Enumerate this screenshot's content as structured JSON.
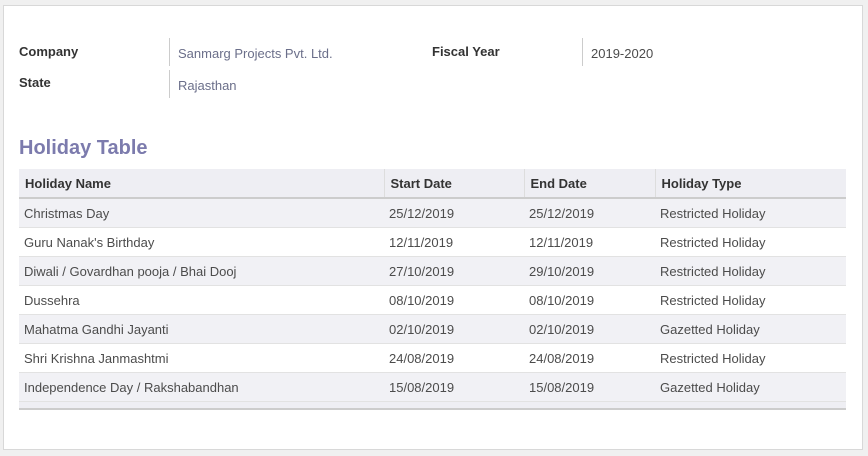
{
  "form": {
    "fields": [
      {
        "label": "Company",
        "value": "Sanmarg Projects Pvt. Ltd."
      },
      {
        "label": "State",
        "value": "Rajasthan"
      },
      {
        "label": "Fiscal Year",
        "value": "2019-2020"
      }
    ]
  },
  "section_title": "Holiday Table",
  "table": {
    "headers": [
      "Holiday Name",
      "Start Date",
      "End Date",
      "Holiday Type"
    ],
    "rows": [
      [
        "Christmas Day",
        "25/12/2019",
        "25/12/2019",
        "Restricted Holiday"
      ],
      [
        "Guru Nanak's Birthday",
        "12/11/2019",
        "12/11/2019",
        "Restricted Holiday"
      ],
      [
        "Diwali / Govardhan pooja / Bhai Dooj",
        "27/10/2019",
        "29/10/2019",
        "Restricted Holiday"
      ],
      [
        "Dussehra",
        "08/10/2019",
        "08/10/2019",
        "Restricted Holiday"
      ],
      [
        "Mahatma Gandhi Jayanti",
        "02/10/2019",
        "02/10/2019",
        "Gazetted Holiday"
      ],
      [
        "Shri Krishna Janmashtmi",
        "24/08/2019",
        "24/08/2019",
        "Restricted Holiday"
      ],
      [
        "Independence Day / Rakshabandhan",
        "15/08/2019",
        "15/08/2019",
        "Gazetted Holiday"
      ]
    ]
  }
}
